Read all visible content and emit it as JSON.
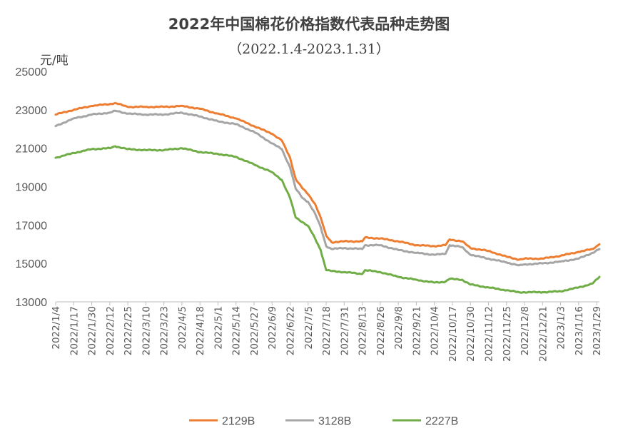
{
  "chart_data": {
    "type": "line",
    "title": "2022年中国棉花价格指数代表品种走势图",
    "subtitle": "（2022.1.4-2023.1.31）",
    "ylabel": "元/吨",
    "ylim": [
      13000,
      25000
    ],
    "yticks": [
      13000,
      15000,
      17000,
      19000,
      21000,
      23000,
      25000
    ],
    "grid": false,
    "legend_position": "bottom",
    "x_range": [
      "2022/1/4",
      "2023/1/31"
    ],
    "xticks": [
      "2022/1/4",
      "2022/1/17",
      "2022/1/30",
      "2022/2/12",
      "2022/2/25",
      "2022/3/10",
      "2022/3/23",
      "2022/4/5",
      "2022/4/18",
      "2022/5/1",
      "2022/5/14",
      "2022/5/27",
      "2022/6/9",
      "2022/6/22",
      "2022/7/5",
      "2022/7/18",
      "2022/7/31",
      "2022/8/13",
      "2022/8/26",
      "2022/9/8",
      "2022/9/21",
      "2022/10/4",
      "2022/10/17",
      "2022/10/30",
      "2022/11/12",
      "2022/11/25",
      "2022/12/8",
      "2022/12/21",
      "2023/1/3",
      "2023/1/16",
      "2023/1/29"
    ],
    "series": [
      {
        "name": "2129B",
        "color": "#ED7D31",
        "points": [
          [
            "2022/1/4",
            22750
          ],
          [
            "2022/1/17",
            23000
          ],
          [
            "2022/1/30",
            23200
          ],
          [
            "2022/2/12",
            23300
          ],
          [
            "2022/2/16",
            23350
          ],
          [
            "2022/2/25",
            23150
          ],
          [
            "2022/3/10",
            23150
          ],
          [
            "2022/3/23",
            23150
          ],
          [
            "2022/4/5",
            23200
          ],
          [
            "2022/4/18",
            23050
          ],
          [
            "2022/5/1",
            22800
          ],
          [
            "2022/5/14",
            22550
          ],
          [
            "2022/5/27",
            22150
          ],
          [
            "2022/6/9",
            21750
          ],
          [
            "2022/6/16",
            21400
          ],
          [
            "2022/6/22",
            20500
          ],
          [
            "2022/6/26",
            19400
          ],
          [
            "2022/7/1",
            18900
          ],
          [
            "2022/7/5",
            18600
          ],
          [
            "2022/7/10",
            18100
          ],
          [
            "2022/7/14",
            17400
          ],
          [
            "2022/7/18",
            16450
          ],
          [
            "2022/7/22",
            16100
          ],
          [
            "2022/7/31",
            16150
          ],
          [
            "2022/8/13",
            16150
          ],
          [
            "2022/8/15",
            16350
          ],
          [
            "2022/8/26",
            16300
          ],
          [
            "2022/9/8",
            16150
          ],
          [
            "2022/9/21",
            15950
          ],
          [
            "2022/10/4",
            15900
          ],
          [
            "2022/10/12",
            15950
          ],
          [
            "2022/10/15",
            16250
          ],
          [
            "2022/10/24",
            16150
          ],
          [
            "2022/10/30",
            15800
          ],
          [
            "2022/11/12",
            15650
          ],
          [
            "2022/11/25",
            15350
          ],
          [
            "2022/12/4",
            15200
          ],
          [
            "2022/12/8",
            15250
          ],
          [
            "2022/12/21",
            15250
          ],
          [
            "2023/1/3",
            15400
          ],
          [
            "2023/1/16",
            15600
          ],
          [
            "2023/1/26",
            15750
          ],
          [
            "2023/1/31",
            16000
          ]
        ]
      },
      {
        "name": "3128B",
        "color": "#A5A5A5",
        "points": [
          [
            "2022/1/4",
            22150
          ],
          [
            "2022/1/17",
            22550
          ],
          [
            "2022/1/30",
            22750
          ],
          [
            "2022/2/12",
            22850
          ],
          [
            "2022/2/16",
            22950
          ],
          [
            "2022/2/25",
            22800
          ],
          [
            "2022/3/10",
            22750
          ],
          [
            "2022/3/23",
            22750
          ],
          [
            "2022/4/5",
            22850
          ],
          [
            "2022/4/18",
            22650
          ],
          [
            "2022/5/1",
            22400
          ],
          [
            "2022/5/14",
            22250
          ],
          [
            "2022/5/27",
            21850
          ],
          [
            "2022/6/9",
            21250
          ],
          [
            "2022/6/16",
            20950
          ],
          [
            "2022/6/22",
            20000
          ],
          [
            "2022/6/26",
            18900
          ],
          [
            "2022/7/1",
            18400
          ],
          [
            "2022/7/5",
            18200
          ],
          [
            "2022/7/10",
            17600
          ],
          [
            "2022/7/14",
            16900
          ],
          [
            "2022/7/18",
            15900
          ],
          [
            "2022/7/22",
            15750
          ],
          [
            "2022/7/31",
            15800
          ],
          [
            "2022/8/13",
            15750
          ],
          [
            "2022/8/15",
            15950
          ],
          [
            "2022/8/26",
            15950
          ],
          [
            "2022/9/8",
            15700
          ],
          [
            "2022/9/21",
            15550
          ],
          [
            "2022/10/4",
            15450
          ],
          [
            "2022/10/12",
            15500
          ],
          [
            "2022/10/15",
            15950
          ],
          [
            "2022/10/24",
            15850
          ],
          [
            "2022/10/30",
            15450
          ],
          [
            "2022/11/12",
            15250
          ],
          [
            "2022/11/25",
            15050
          ],
          [
            "2022/12/4",
            14900
          ],
          [
            "2022/12/8",
            14950
          ],
          [
            "2022/12/21",
            15000
          ],
          [
            "2023/1/3",
            15100
          ],
          [
            "2023/1/16",
            15250
          ],
          [
            "2023/1/26",
            15550
          ],
          [
            "2023/1/31",
            15750
          ]
        ]
      },
      {
        "name": "2227B",
        "color": "#70AD47",
        "points": [
          [
            "2022/1/4",
            20500
          ],
          [
            "2022/1/17",
            20750
          ],
          [
            "2022/1/30",
            20950
          ],
          [
            "2022/2/12",
            21000
          ],
          [
            "2022/2/16",
            21100
          ],
          [
            "2022/2/25",
            20950
          ],
          [
            "2022/3/10",
            20900
          ],
          [
            "2022/3/23",
            20900
          ],
          [
            "2022/4/5",
            21000
          ],
          [
            "2022/4/18",
            20800
          ],
          [
            "2022/5/1",
            20700
          ],
          [
            "2022/5/14",
            20550
          ],
          [
            "2022/5/27",
            20150
          ],
          [
            "2022/6/9",
            19750
          ],
          [
            "2022/6/16",
            19350
          ],
          [
            "2022/6/22",
            18400
          ],
          [
            "2022/6/26",
            17400
          ],
          [
            "2022/7/1",
            17150
          ],
          [
            "2022/7/5",
            16950
          ],
          [
            "2022/7/10",
            16300
          ],
          [
            "2022/7/14",
            15700
          ],
          [
            "2022/7/18",
            14650
          ],
          [
            "2022/7/22",
            14600
          ],
          [
            "2022/7/31",
            14550
          ],
          [
            "2022/8/13",
            14450
          ],
          [
            "2022/8/15",
            14650
          ],
          [
            "2022/8/26",
            14550
          ],
          [
            "2022/9/8",
            14300
          ],
          [
            "2022/9/21",
            14150
          ],
          [
            "2022/10/4",
            14000
          ],
          [
            "2022/10/12",
            14050
          ],
          [
            "2022/10/15",
            14200
          ],
          [
            "2022/10/24",
            14150
          ],
          [
            "2022/10/30",
            13900
          ],
          [
            "2022/11/12",
            13750
          ],
          [
            "2022/11/25",
            13600
          ],
          [
            "2022/12/4",
            13500
          ],
          [
            "2022/12/8",
            13500
          ],
          [
            "2022/12/21",
            13500
          ],
          [
            "2023/1/3",
            13550
          ],
          [
            "2023/1/16",
            13750
          ],
          [
            "2023/1/26",
            13950
          ],
          [
            "2023/1/31",
            14300
          ]
        ]
      }
    ]
  }
}
